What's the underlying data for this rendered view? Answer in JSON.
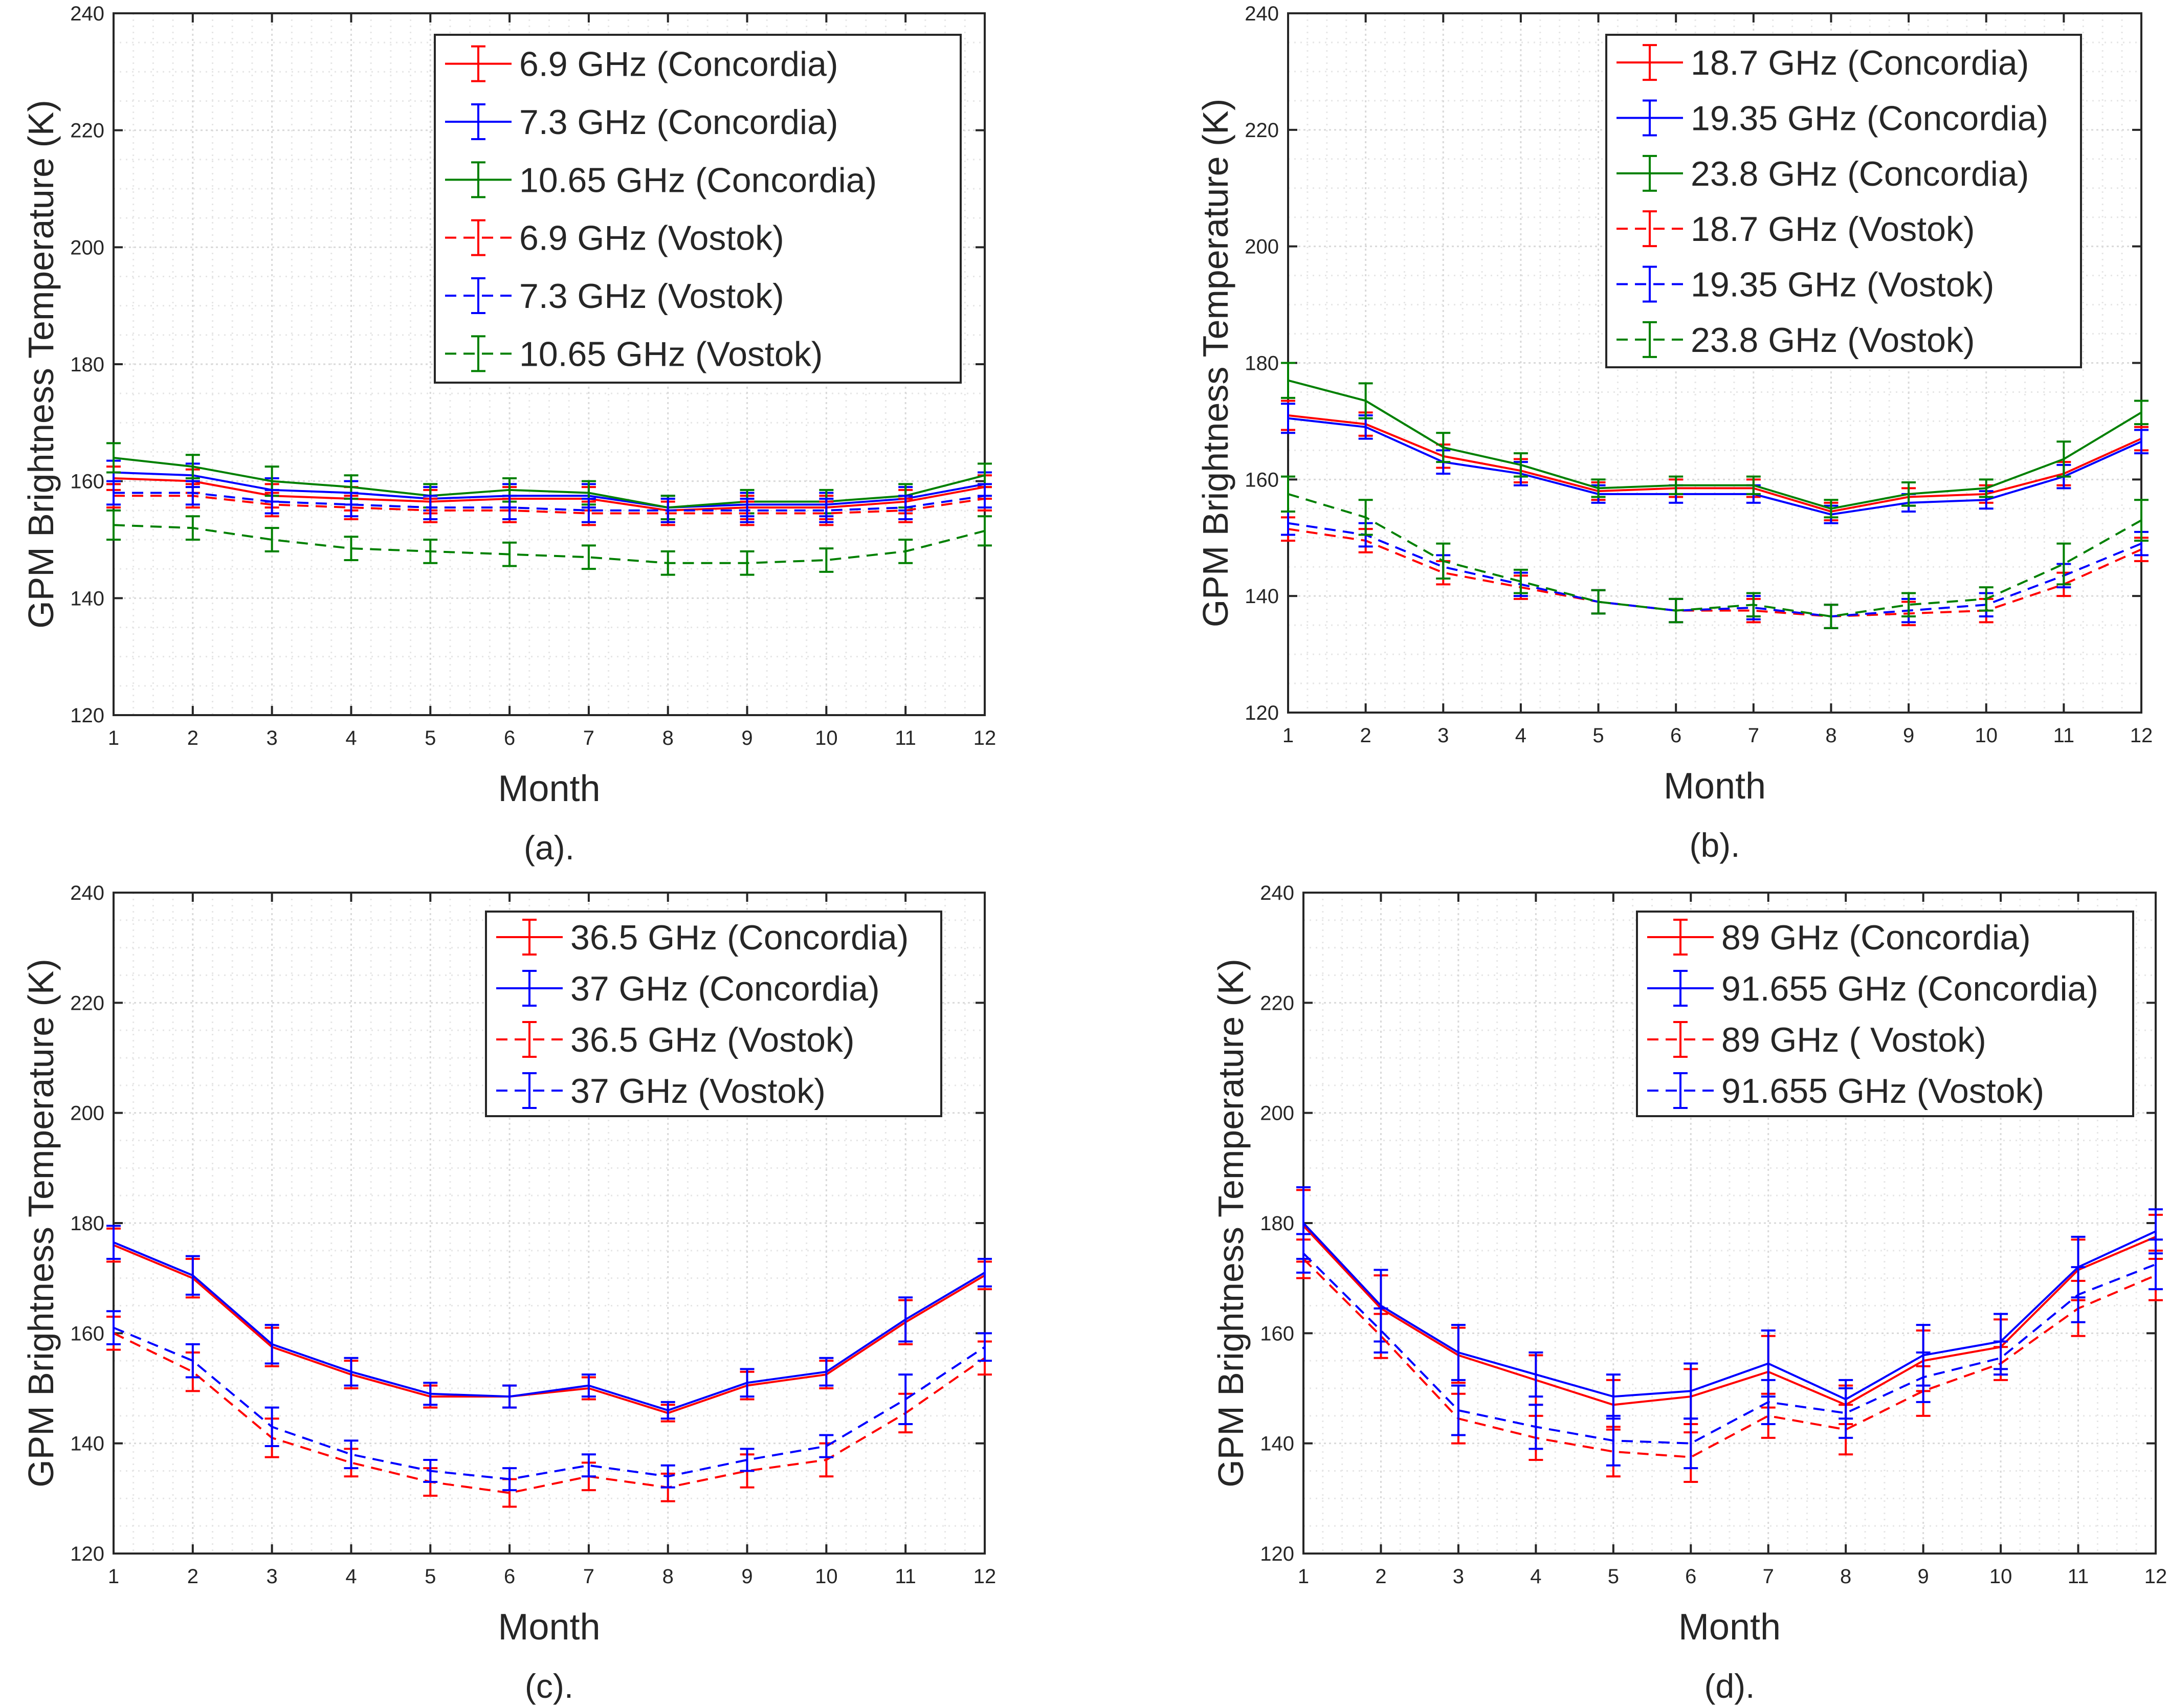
{
  "figure": {
    "colors": {
      "red": "#ff0000",
      "blue": "#0000ff",
      "green": "#008000",
      "grid": "#d9d9d9",
      "axis": "#262626",
      "text": "#262626"
    }
  },
  "chart_data": [
    {
      "type": "line",
      "panel": "a",
      "caption": "(a).",
      "xlabel": "Month",
      "ylabel": "GPM Brightness Temperature (K)",
      "xlim": [
        1,
        12
      ],
      "ylim": [
        120,
        240
      ],
      "xticks": [
        1,
        2,
        3,
        4,
        5,
        6,
        7,
        8,
        9,
        10,
        11,
        12
      ],
      "yticks": [
        120,
        140,
        160,
        180,
        200,
        220,
        240
      ],
      "grid": true,
      "legend_position": "top-right",
      "x": [
        1,
        2,
        3,
        4,
        5,
        6,
        7,
        8,
        9,
        10,
        11,
        12
      ],
      "series": [
        {
          "name": "6.9 GHz (Concordia)",
          "color": "red",
          "style": "solid",
          "values": [
            160.5,
            160,
            157.5,
            157,
            156.5,
            157,
            157,
            155,
            155.5,
            155.5,
            156.5,
            159
          ],
          "error": [
            2,
            2,
            2,
            2,
            2,
            2,
            2,
            2,
            2,
            2,
            2,
            2
          ]
        },
        {
          "name": "7.3 GHz (Concordia)",
          "color": "blue",
          "style": "solid",
          "values": [
            161.5,
            161,
            158.5,
            158,
            157,
            157.5,
            157.5,
            155.5,
            156,
            156,
            157,
            159.5
          ],
          "error": [
            2,
            2,
            2,
            2,
            2,
            2,
            2,
            2,
            2,
            2,
            2,
            2
          ]
        },
        {
          "name": "10.65 GHz (Concordia)",
          "color": "green",
          "style": "solid",
          "values": [
            164,
            162.5,
            160,
            159,
            157.5,
            158.5,
            158,
            155.5,
            156.5,
            156.5,
            157.5,
            161
          ],
          "error": [
            2.5,
            2,
            2.5,
            2,
            2,
            2,
            2,
            2,
            2,
            2,
            2,
            2
          ]
        },
        {
          "name": "6.9 GHz (Vostok)",
          "color": "red",
          "style": "dashed",
          "values": [
            157.5,
            157.5,
            156,
            155.5,
            155,
            155,
            154.5,
            154.5,
            154.5,
            154.5,
            155,
            157
          ],
          "error": [
            2,
            2,
            2,
            2,
            2,
            2,
            2,
            2,
            2,
            2,
            2,
            2
          ]
        },
        {
          "name": "7.3 GHz (Vostok)",
          "color": "blue",
          "style": "dashed",
          "values": [
            158,
            158,
            156.5,
            156,
            155.5,
            155.5,
            155,
            155,
            155,
            155,
            155.5,
            157.5
          ],
          "error": [
            2,
            2,
            2,
            2,
            2,
            2,
            2,
            2,
            2,
            2,
            2,
            2
          ]
        },
        {
          "name": "10.65 GHz (Vostok)",
          "color": "green",
          "style": "dashed",
          "values": [
            152.5,
            152,
            150,
            148.5,
            148,
            147.5,
            147,
            146,
            146,
            146.5,
            148,
            151.5
          ],
          "error": [
            2.5,
            2,
            2,
            2,
            2,
            2,
            2,
            2,
            2,
            2,
            2,
            2.5
          ]
        }
      ]
    },
    {
      "type": "line",
      "panel": "b",
      "caption": "(b).",
      "xlabel": "Month",
      "ylabel": "GPM Brightness Temperature (K)",
      "xlim": [
        1,
        12
      ],
      "ylim": [
        120,
        240
      ],
      "xticks": [
        1,
        2,
        3,
        4,
        5,
        6,
        7,
        8,
        9,
        10,
        11,
        12
      ],
      "yticks": [
        120,
        140,
        160,
        180,
        200,
        220,
        240
      ],
      "grid": true,
      "legend_position": "top-right",
      "x": [
        1,
        2,
        3,
        4,
        5,
        6,
        7,
        8,
        9,
        10,
        11,
        12
      ],
      "series": [
        {
          "name": "18.7 GHz (Concordia)",
          "color": "red",
          "style": "solid",
          "values": [
            171,
            169.5,
            164,
            161.5,
            158,
            158.5,
            158.5,
            154.5,
            157,
            157.5,
            161,
            167
          ],
          "error": [
            2.5,
            2,
            2,
            2,
            1.5,
            1.5,
            1.5,
            1.5,
            1.5,
            1.5,
            2,
            2
          ]
        },
        {
          "name": "19.35 GHz (Concordia)",
          "color": "blue",
          "style": "solid",
          "values": [
            170.5,
            169,
            163,
            161,
            157.5,
            157.5,
            157.5,
            154,
            156,
            156.5,
            160.5,
            166.5
          ],
          "error": [
            2.5,
            2,
            2,
            2,
            1.5,
            1.5,
            1.5,
            1.5,
            1.5,
            1.5,
            2,
            2
          ]
        },
        {
          "name": "23.8 GHz (Concordia)",
          "color": "green",
          "style": "solid",
          "values": [
            177,
            173.5,
            165.5,
            162.5,
            158.5,
            159,
            159,
            155,
            157.5,
            158.5,
            163.5,
            171.5
          ],
          "error": [
            3,
            3,
            2.5,
            2,
            1.5,
            1.5,
            1.5,
            1.5,
            2,
            1.5,
            3,
            2
          ]
        },
        {
          "name": "18.7 GHz (Vostok)",
          "color": "red",
          "style": "dashed",
          "values": [
            151.5,
            149.5,
            144,
            141.5,
            139,
            137.5,
            137.5,
            136.5,
            137,
            137.5,
            142,
            148
          ],
          "error": [
            2,
            2,
            2,
            2,
            2,
            2,
            2,
            2,
            2,
            2,
            2,
            2
          ]
        },
        {
          "name": "19.35 GHz (Vostok)",
          "color": "blue",
          "style": "dashed",
          "values": [
            152.5,
            150.5,
            145,
            142,
            139,
            137.5,
            138,
            136.5,
            137.5,
            138.5,
            143.5,
            149
          ],
          "error": [
            2,
            2,
            2,
            2,
            2,
            2,
            2,
            2,
            2,
            2,
            2,
            2
          ]
        },
        {
          "name": "23.8 GHz (Vostok)",
          "color": "green",
          "style": "dashed",
          "values": [
            157.5,
            153.5,
            146,
            142.5,
            139,
            137.5,
            138.5,
            136.5,
            138.5,
            139.5,
            145.5,
            153
          ],
          "error": [
            3,
            3,
            3,
            2,
            2,
            2,
            2,
            2,
            2,
            2,
            3.5,
            3.5
          ]
        }
      ]
    },
    {
      "type": "line",
      "panel": "c",
      "caption": "(c).",
      "xlabel": "Month",
      "ylabel": "GPM Brightness Temperature (K)",
      "xlim": [
        1,
        12
      ],
      "ylim": [
        120,
        240
      ],
      "xticks": [
        1,
        2,
        3,
        4,
        5,
        6,
        7,
        8,
        9,
        10,
        11,
        12
      ],
      "yticks": [
        120,
        140,
        160,
        180,
        200,
        220,
        240
      ],
      "grid": true,
      "legend_position": "top-right",
      "x": [
        1,
        2,
        3,
        4,
        5,
        6,
        7,
        8,
        9,
        10,
        11,
        12
      ],
      "series": [
        {
          "name": "36.5 GHz (Concordia)",
          "color": "red",
          "style": "solid",
          "values": [
            176,
            170,
            157.5,
            152.5,
            148.5,
            148.5,
            150,
            145.5,
            150.5,
            152.5,
            162,
            170.5
          ],
          "error": [
            3,
            3.5,
            3.5,
            2.5,
            2,
            2,
            2,
            1.5,
            2.5,
            2.5,
            4,
            2.5
          ]
        },
        {
          "name": "37 GHz (Concordia)",
          "color": "blue",
          "style": "solid",
          "values": [
            176.5,
            170.5,
            158,
            153,
            149,
            148.5,
            150.5,
            146,
            151,
            153,
            162.5,
            171
          ],
          "error": [
            3,
            3.5,
            3.5,
            2.5,
            2,
            2,
            2,
            1.5,
            2.5,
            2.5,
            4,
            2.5
          ]
        },
        {
          "name": "36.5 GHz (Vostok)",
          "color": "red",
          "style": "dashed",
          "values": [
            160,
            153,
            141,
            136.5,
            133,
            131,
            134,
            132,
            135,
            137,
            145.5,
            155.5
          ],
          "error": [
            3,
            3.5,
            3.5,
            2.5,
            2.5,
            2.5,
            2.5,
            2.5,
            3,
            3,
            3.5,
            3
          ]
        },
        {
          "name": "37 GHz (Vostok)",
          "color": "blue",
          "style": "dashed",
          "values": [
            161,
            155,
            143,
            138,
            135,
            133.5,
            136,
            134,
            137,
            139.5,
            148,
            157.5
          ],
          "error": [
            3,
            3,
            3.5,
            2.5,
            2,
            2,
            2,
            2,
            2,
            2,
            4.5,
            2.5
          ]
        }
      ]
    },
    {
      "type": "line",
      "panel": "d",
      "caption": "(d).",
      "xlabel": "Month",
      "ylabel": "GPM Brightness Temperature (K)",
      "xlim": [
        1,
        12
      ],
      "ylim": [
        120,
        240
      ],
      "xticks": [
        1,
        2,
        3,
        4,
        5,
        6,
        7,
        8,
        9,
        10,
        11,
        12
      ],
      "yticks": [
        120,
        140,
        160,
        180,
        200,
        220,
        240
      ],
      "grid": true,
      "legend_position": "top-right",
      "x": [
        1,
        2,
        3,
        4,
        5,
        6,
        7,
        8,
        9,
        10,
        11,
        12
      ],
      "series": [
        {
          "name": "89 GHz (Concordia)",
          "color": "red",
          "style": "solid",
          "values": [
            179.5,
            164.5,
            156,
            151.5,
            147,
            148.5,
            153,
            147,
            155,
            157.5,
            171.5,
            177.5
          ],
          "error": [
            6.5,
            6,
            5,
            4.5,
            4.5,
            5,
            6.5,
            3.5,
            5.5,
            5,
            5.5,
            4
          ]
        },
        {
          "name": "91.655 GHz (Concordia)",
          "color": "blue",
          "style": "solid",
          "values": [
            180,
            165,
            156.5,
            152.5,
            148.5,
            149.5,
            154.5,
            148,
            156,
            158.5,
            172,
            178.5
          ],
          "error": [
            6.5,
            6.5,
            5,
            4,
            4,
            5,
            6,
            3.5,
            5.5,
            5,
            5.5,
            4
          ]
        },
        {
          "name": "89 GHz ( Vostok)",
          "color": "red",
          "style": "dashed",
          "values": [
            173.5,
            159.5,
            144.5,
            141,
            138.5,
            137.5,
            145,
            142.5,
            149.5,
            154.5,
            164.5,
            170.5
          ],
          "error": [
            3.5,
            4,
            4.5,
            4,
            4.5,
            4.5,
            4,
            4.5,
            4.5,
            3,
            5,
            4.5
          ]
        },
        {
          "name": "91.655 GHz (Vostok)",
          "color": "blue",
          "style": "dashed",
          "values": [
            174.5,
            160.5,
            146,
            143,
            140.5,
            140,
            147.5,
            145.5,
            152,
            155.5,
            167,
            172.5
          ],
          "error": [
            3.5,
            4,
            4.5,
            4,
            4.5,
            4.5,
            4,
            4.5,
            4.5,
            3,
            5,
            4.5
          ]
        }
      ]
    }
  ]
}
